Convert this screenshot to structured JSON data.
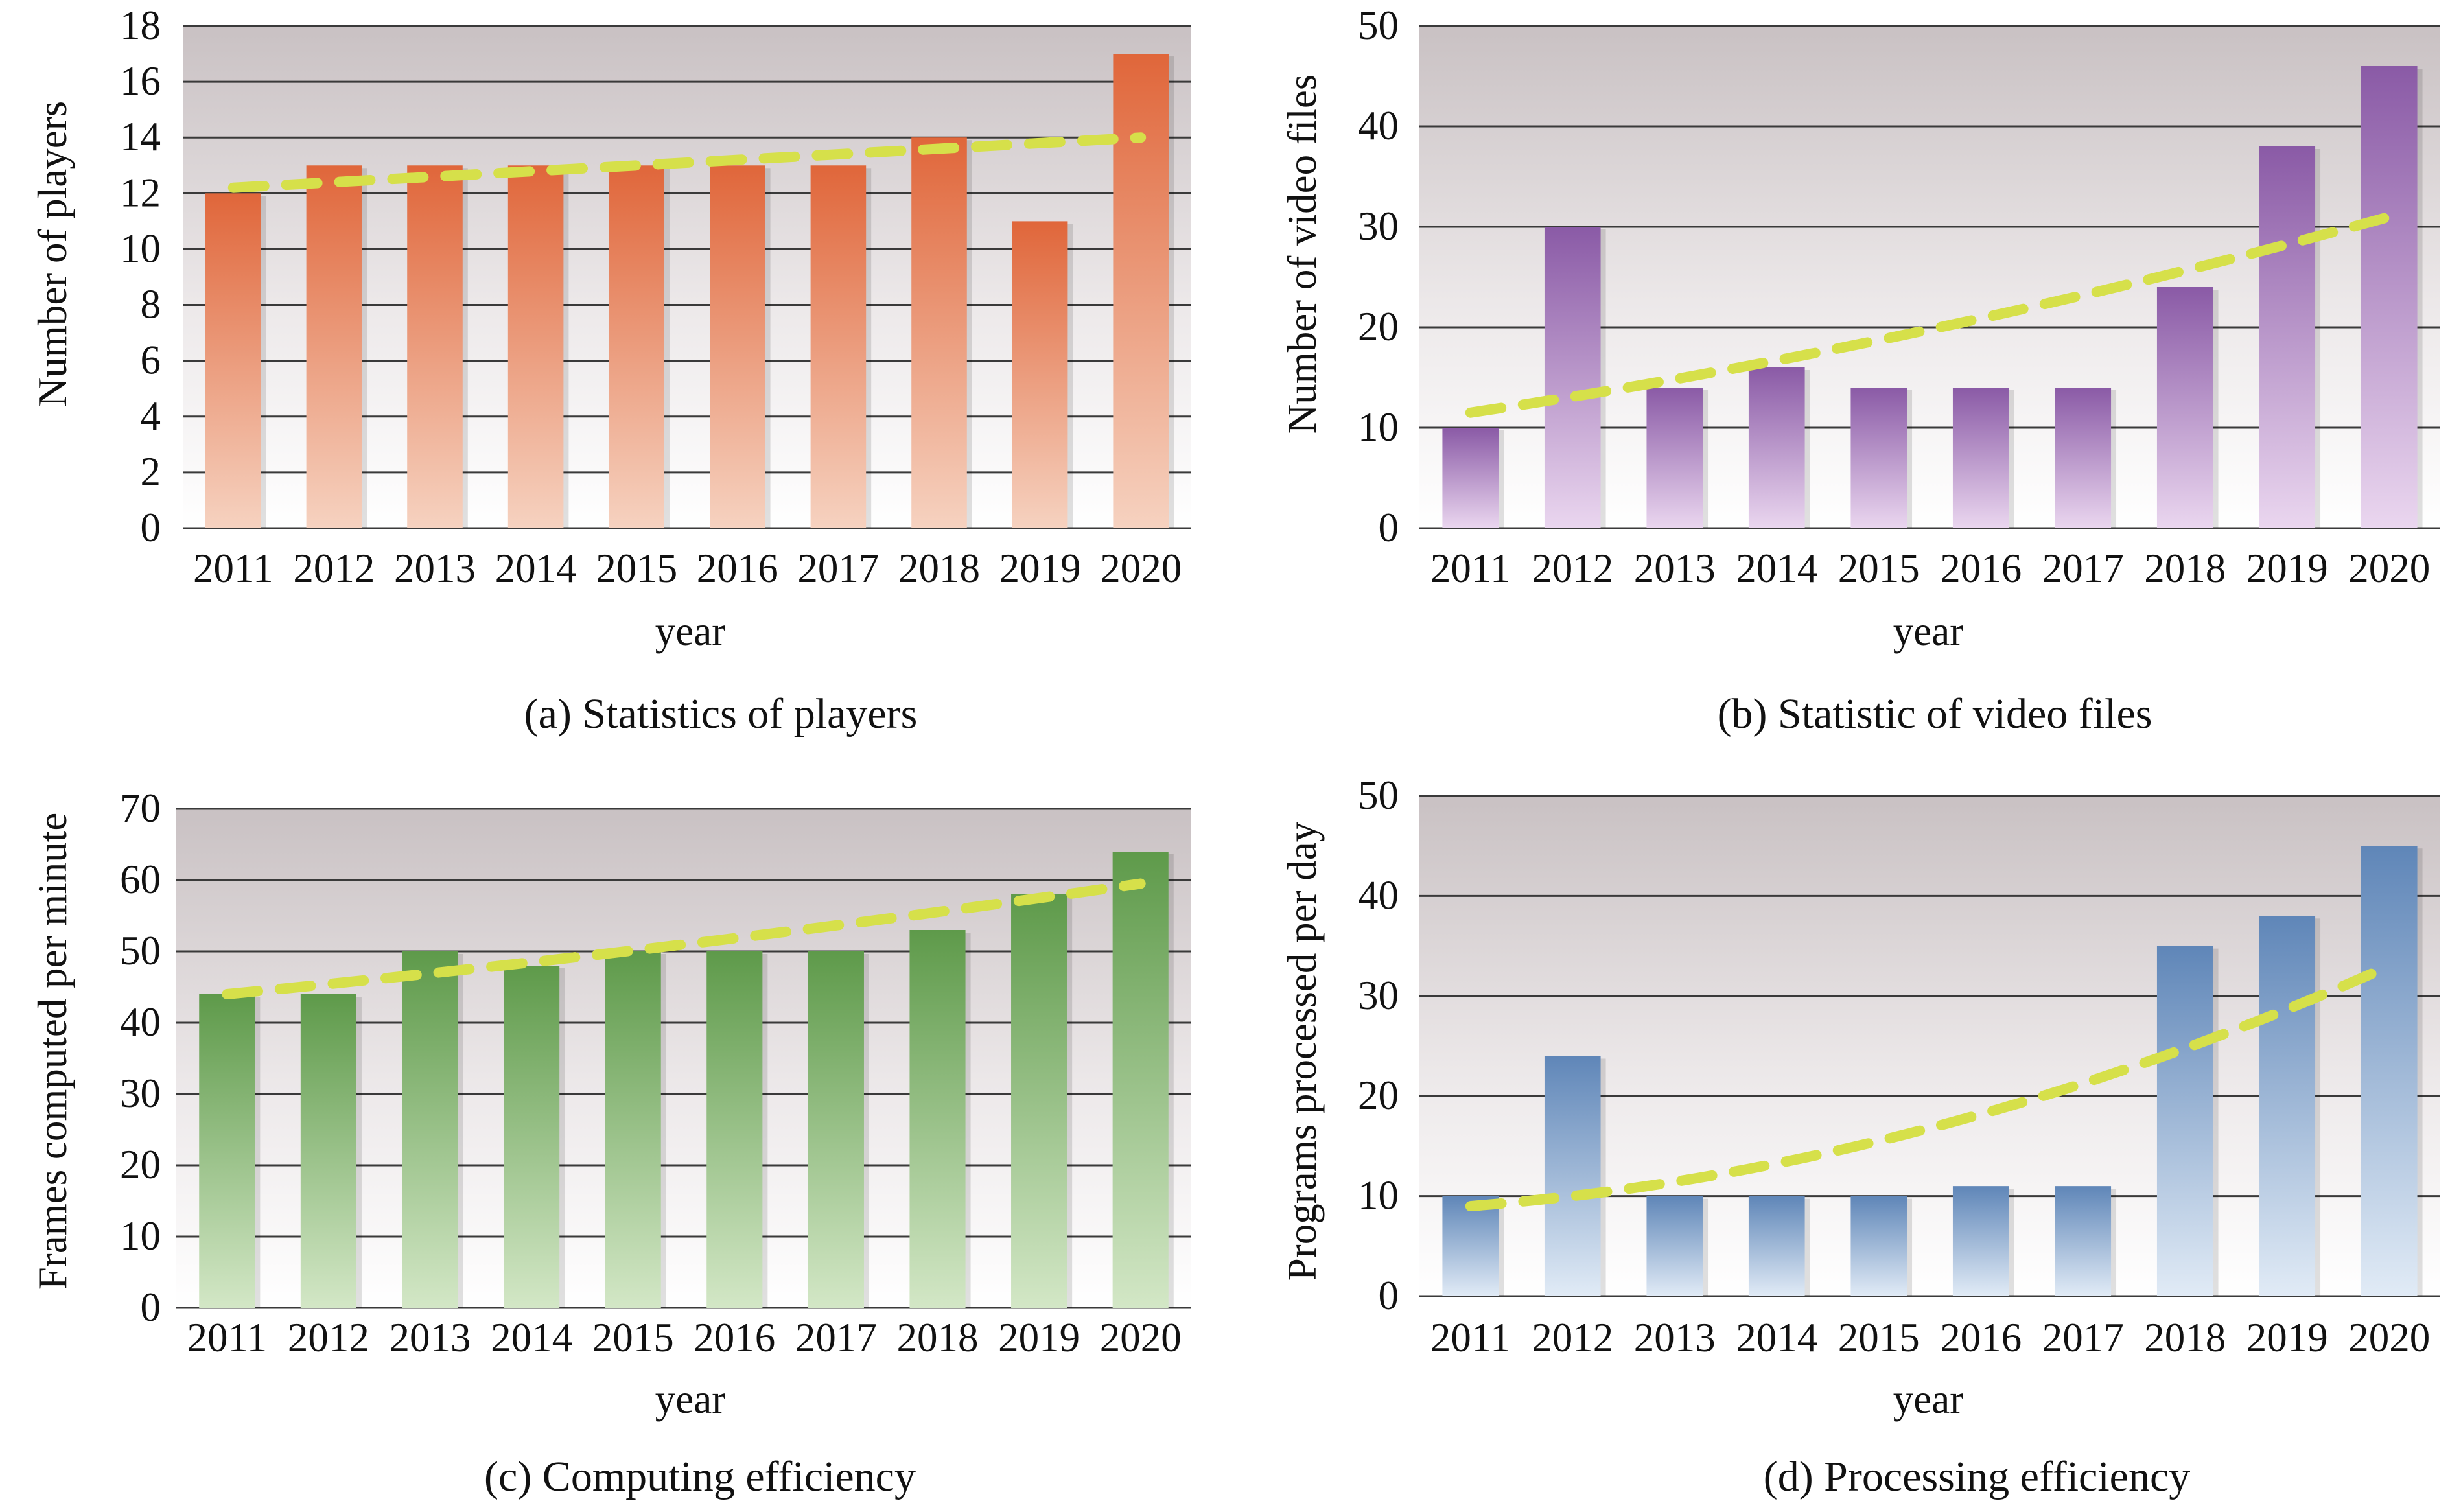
{
  "chart_data": [
    {
      "type": "bar",
      "caption": "(a) Statistics of players",
      "categories": [
        "2011",
        "2012",
        "2013",
        "2014",
        "2015",
        "2016",
        "2017",
        "2018",
        "2019",
        "2020"
      ],
      "values": [
        12,
        13,
        13,
        13,
        13,
        13,
        13,
        14,
        11,
        17
      ],
      "trend": {
        "start": 12.2,
        "end": 14.0,
        "curve": 0
      },
      "xlabel": "year",
      "ylabel": "Number of players",
      "ylim": [
        0,
        18
      ],
      "yticks": [
        "0",
        "2",
        "4",
        "6",
        "8",
        "10",
        "12",
        "14",
        "16",
        "18"
      ],
      "grid": true,
      "bar_color_top": "#e0663a",
      "bar_color_bottom": "#f6d2c0"
    },
    {
      "type": "bar",
      "caption": "(b) Statistic of video files",
      "categories": [
        "2011",
        "2012",
        "2013",
        "2014",
        "2015",
        "2016",
        "2017",
        "2018",
        "2019",
        "2020"
      ],
      "values": [
        10,
        30,
        14,
        16,
        14,
        14,
        14,
        24,
        38,
        46
      ],
      "trend": {
        "start": 11.5,
        "end": 31.0,
        "curve": 0.15
      },
      "xlabel": "year",
      "ylabel": "Number of video files",
      "ylim": [
        0,
        50
      ],
      "yticks": [
        "0",
        "10",
        "20",
        "30",
        "40",
        "50"
      ],
      "grid": true,
      "bar_color_top": "#8a5aa6",
      "bar_color_bottom": "#ead6ef"
    },
    {
      "type": "bar",
      "caption": "(c) Computing efficiency",
      "categories": [
        "2011",
        "2012",
        "2013",
        "2014",
        "2015",
        "2016",
        "2017",
        "2018",
        "2019",
        "2020"
      ],
      "values": [
        44,
        44,
        50,
        48,
        50,
        50,
        50,
        53,
        58,
        64
      ],
      "trend": {
        "start": 44.0,
        "end": 59.5,
        "curve": 0.1
      },
      "xlabel": "year",
      "ylabel": "Frames computed per minute",
      "ylim": [
        0,
        70
      ],
      "yticks": [
        "0",
        "10",
        "20",
        "30",
        "40",
        "50",
        "60",
        "70"
      ],
      "grid": true,
      "bar_color_top": "#5e9a4a",
      "bar_color_bottom": "#d3e7c6"
    },
    {
      "type": "bar",
      "caption": "(d) Processing efficiency",
      "categories": [
        "2011",
        "2012",
        "2013",
        "2014",
        "2015",
        "2016",
        "2017",
        "2018",
        "2019",
        "2020"
      ],
      "values": [
        10,
        24,
        10,
        10,
        10,
        11,
        11,
        35,
        38,
        45
      ],
      "trend": {
        "start": 9.0,
        "end": 33.0,
        "curve": 0.35
      },
      "xlabel": "year",
      "ylabel": "Programs processed per day",
      "ylim": [
        0,
        50
      ],
      "yticks": [
        "0",
        "10",
        "20",
        "30",
        "40",
        "50"
      ],
      "grid": true,
      "bar_color_top": "#5f86b8",
      "bar_color_bottom": "#e1ebf6"
    }
  ],
  "style": {
    "panel_top_color": "#c9c1c3",
    "panel_bottom_color": "#ffffff",
    "gridline_color": "#3a3a3a",
    "trend_color": "#d6e04a"
  }
}
